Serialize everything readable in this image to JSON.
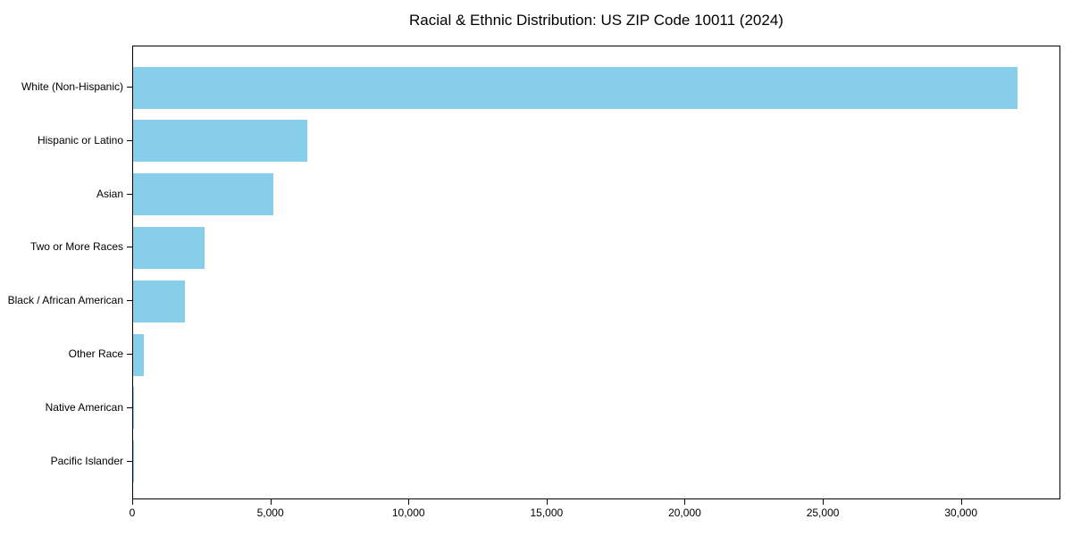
{
  "title": "Racial & Ethnic Distribution: US ZIP Code 10011 (2024)",
  "chart_data": {
    "type": "bar",
    "orientation": "horizontal",
    "title": "Racial & Ethnic Distribution: US ZIP Code 10011 (2024)",
    "xlabel": "",
    "ylabel": "",
    "categories": [
      "White (Non-Hispanic)",
      "Hispanic or Latino",
      "Asian",
      "Two or More Races",
      "Black / African American",
      "Other Race",
      "Native American",
      "Pacific Islander"
    ],
    "values": [
      32000,
      6300,
      5080,
      2580,
      1860,
      400,
      30,
      10
    ],
    "xlim": [
      0,
      33600
    ],
    "xticks": {
      "values": [
        0,
        5000,
        10000,
        15000,
        20000,
        25000,
        30000
      ],
      "labels": [
        "0",
        "5,000",
        "10,000",
        "15,000",
        "20,000",
        "25,000",
        "30,000"
      ]
    },
    "bar_color": "#87CEEB",
    "frame_color": "#000000",
    "grid": false,
    "legend_position": "none"
  }
}
